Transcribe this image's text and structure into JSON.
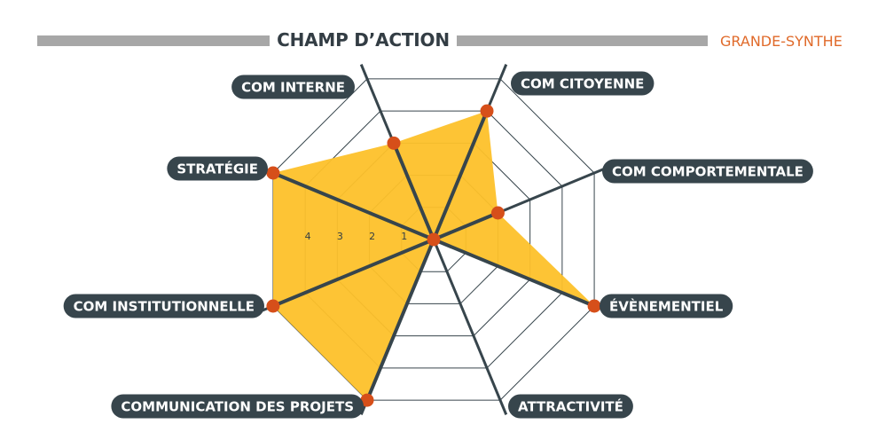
{
  "header": {
    "title": "CHAMP D’ACTION",
    "city": "GRANDE-SYNTHE"
  },
  "colors": {
    "fill": "#fdc12a",
    "point": "#d64f1a",
    "axis": "#37454c",
    "grid": "#37454c",
    "label_bg": "#37454c",
    "bar": "#a7a7a7",
    "city": "#e06a2a"
  },
  "chart_data": {
    "type": "radar",
    "title": "CHAMP D’ACTION",
    "axes": [
      "COM CITOYENNE",
      "COM COMPORTEMENTALE",
      "ÉVÈNEMENTIEL",
      "ATTRACTIVITÉ",
      "COMMUNICATION DES PROJETS",
      "COM INSTITUTIONNELLE",
      "STRATÉGIE",
      "COM INTERNE"
    ],
    "values": [
      4,
      2,
      5,
      0,
      5,
      5,
      5,
      3
    ],
    "range": [
      0,
      5
    ],
    "ticks": [
      "1",
      "2",
      "3",
      "4"
    ],
    "grid": true
  }
}
